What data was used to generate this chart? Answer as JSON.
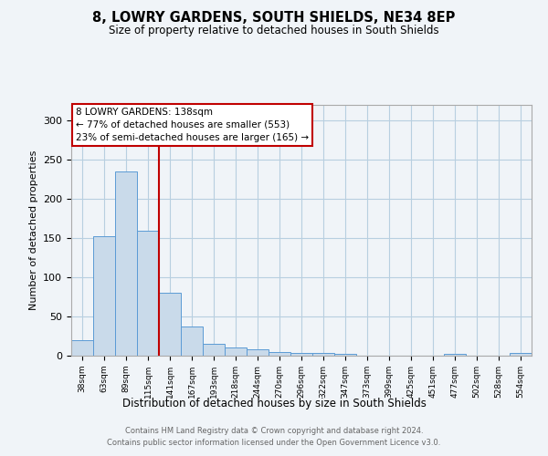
{
  "title": "8, LOWRY GARDENS, SOUTH SHIELDS, NE34 8EP",
  "subtitle": "Size of property relative to detached houses in South Shields",
  "xlabel": "Distribution of detached houses by size in South Shields",
  "ylabel": "Number of detached properties",
  "footer_line1": "Contains HM Land Registry data © Crown copyright and database right 2024.",
  "footer_line2": "Contains public sector information licensed under the Open Government Licence v3.0.",
  "annotation_line1": "8 LOWRY GARDENS: 138sqm",
  "annotation_line2": "← 77% of detached houses are smaller (553)",
  "annotation_line3": "23% of semi-detached houses are larger (165) →",
  "marker_bin_index": 4,
  "bar_color": "#c9daea",
  "bar_edge_color": "#5b9bd5",
  "marker_color": "#c00000",
  "background_color": "#f0f4f8",
  "grid_color": "#b8cfe0",
  "categories": [
    "38sqm",
    "63sqm",
    "89sqm",
    "115sqm",
    "141sqm",
    "167sqm",
    "193sqm",
    "218sqm",
    "244sqm",
    "270sqm",
    "296sqm",
    "322sqm",
    "347sqm",
    "373sqm",
    "399sqm",
    "425sqm",
    "451sqm",
    "477sqm",
    "502sqm",
    "528sqm",
    "554sqm"
  ],
  "values": [
    20,
    152,
    235,
    160,
    80,
    37,
    15,
    10,
    8,
    5,
    4,
    3,
    2,
    0,
    0,
    0,
    0,
    2,
    0,
    0,
    3
  ],
  "ylim": [
    0,
    320
  ],
  "yticks": [
    0,
    50,
    100,
    150,
    200,
    250,
    300
  ]
}
